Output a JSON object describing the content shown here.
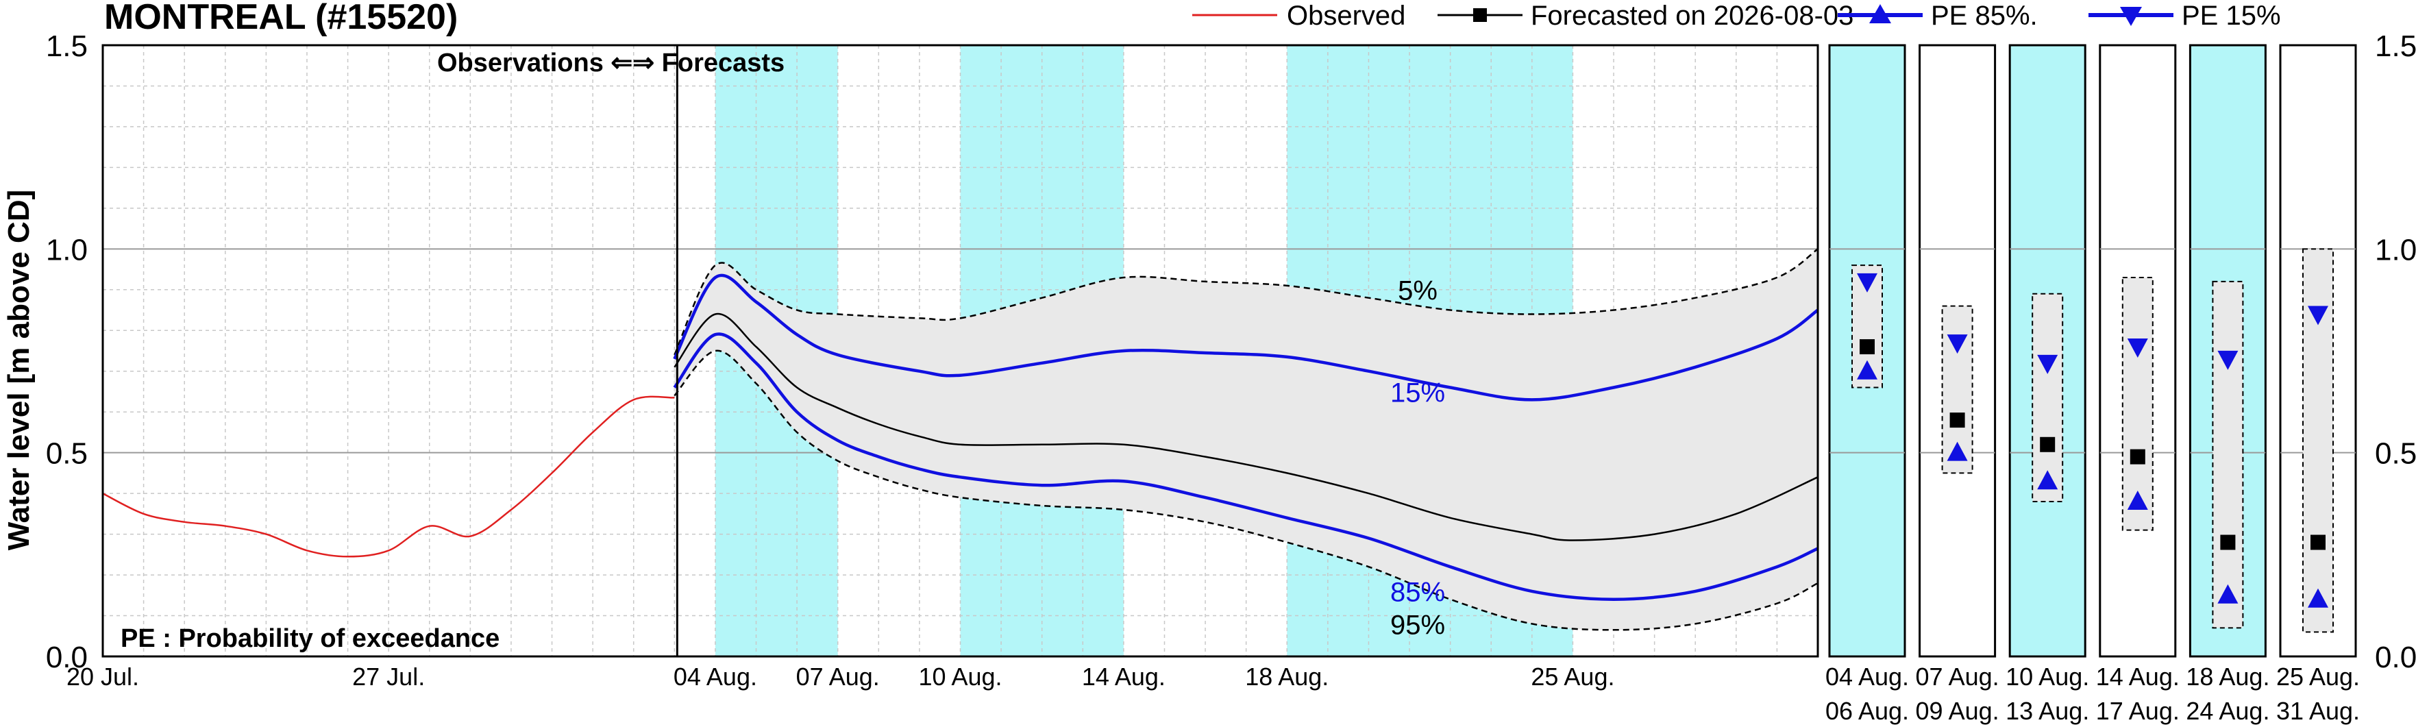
{
  "chart_data": {
    "type": "line",
    "title": "MONTREAL (#15520)",
    "ylabel": "Water level [m above CD]",
    "ylim": [
      0.0,
      1.5
    ],
    "yticks": [
      "0.0",
      "0.5",
      "1.0",
      "1.5"
    ],
    "grid": true,
    "legend_position": "top-right",
    "legend": {
      "observed": "Observed",
      "forecast": "Forecasted on 2026-08-03",
      "pe85": "PE 85%.",
      "pe15": "PE 15%"
    },
    "annotations": {
      "obs_forecast": "Observations  ⇐⇒  Forecasts",
      "pe_note": "PE : Probability of exceedance",
      "p5": "5%",
      "p15": "15%",
      "p85": "85%",
      "p95": "95%"
    },
    "x_start": "2026-07-20",
    "x_end": "2026-08-31",
    "forecast_start": "2026-08-03",
    "x_tick_labels": [
      {
        "date": "2026-07-20",
        "label": "20 Jul."
      },
      {
        "date": "2026-07-27",
        "label": "27 Jul."
      },
      {
        "date": "2026-08-04",
        "label": "04 Aug."
      },
      {
        "date": "2026-08-07",
        "label": "07 Aug."
      },
      {
        "date": "2026-08-10",
        "label": "10 Aug."
      },
      {
        "date": "2026-08-14",
        "label": "14 Aug."
      },
      {
        "date": "2026-08-18",
        "label": "18 Aug."
      },
      {
        "date": "2026-08-25",
        "label": "25 Aug."
      }
    ],
    "shaded_periods": [
      [
        "2026-08-04",
        "2026-08-07"
      ],
      [
        "2026-08-10",
        "2026-08-14"
      ],
      [
        "2026-08-18",
        "2026-08-25"
      ]
    ],
    "colors": {
      "observed": "#e02020",
      "forecast": "#000000",
      "pe": "#1010e0",
      "band": "#e9e9e9",
      "cyan": "#b4f6f8"
    },
    "series": [
      {
        "name": "Observed",
        "points": [
          [
            "2026-07-20",
            0.4
          ],
          [
            "2026-07-21",
            0.35
          ],
          [
            "2026-07-22",
            0.33
          ],
          [
            "2026-07-23",
            0.32
          ],
          [
            "2026-07-24",
            0.3
          ],
          [
            "2026-07-25",
            0.26
          ],
          [
            "2026-07-26",
            0.245
          ],
          [
            "2026-07-27",
            0.26
          ],
          [
            "2026-07-28",
            0.32
          ],
          [
            "2026-07-29",
            0.295
          ],
          [
            "2026-07-30",
            0.36
          ],
          [
            "2026-07-31",
            0.45
          ],
          [
            "2026-08-01",
            0.55
          ],
          [
            "2026-08-02",
            0.63
          ],
          [
            "2026-08-03",
            0.635
          ]
        ]
      },
      {
        "name": "Forecasted on 2026-08-03",
        "points": [
          [
            "2026-08-03",
            0.71
          ],
          [
            "2026-08-04",
            0.84
          ],
          [
            "2026-08-05",
            0.76
          ],
          [
            "2026-08-06",
            0.66
          ],
          [
            "2026-08-07",
            0.61
          ],
          [
            "2026-08-08",
            0.57
          ],
          [
            "2026-08-09",
            0.54
          ],
          [
            "2026-08-10",
            0.52
          ],
          [
            "2026-08-12",
            0.52
          ],
          [
            "2026-08-14",
            0.52
          ],
          [
            "2026-08-16",
            0.49
          ],
          [
            "2026-08-18",
            0.45
          ],
          [
            "2026-08-20",
            0.4
          ],
          [
            "2026-08-22",
            0.34
          ],
          [
            "2026-08-24",
            0.3
          ],
          [
            "2026-08-25",
            0.285
          ],
          [
            "2026-08-27",
            0.3
          ],
          [
            "2026-08-29",
            0.35
          ],
          [
            "2026-08-31",
            0.44
          ]
        ]
      },
      {
        "name": "PE 85%.",
        "points": [
          [
            "2026-08-03",
            0.66
          ],
          [
            "2026-08-04",
            0.79
          ],
          [
            "2026-08-05",
            0.72
          ],
          [
            "2026-08-06",
            0.6
          ],
          [
            "2026-08-07",
            0.53
          ],
          [
            "2026-08-08",
            0.49
          ],
          [
            "2026-08-09",
            0.46
          ],
          [
            "2026-08-10",
            0.44
          ],
          [
            "2026-08-12",
            0.42
          ],
          [
            "2026-08-14",
            0.43
          ],
          [
            "2026-08-16",
            0.39
          ],
          [
            "2026-08-18",
            0.34
          ],
          [
            "2026-08-20",
            0.29
          ],
          [
            "2026-08-22",
            0.22
          ],
          [
            "2026-08-24",
            0.16
          ],
          [
            "2026-08-26",
            0.14
          ],
          [
            "2026-08-28",
            0.16
          ],
          [
            "2026-08-30",
            0.22
          ],
          [
            "2026-08-31",
            0.265
          ]
        ]
      },
      {
        "name": "PE 15%",
        "points": [
          [
            "2026-08-03",
            0.73
          ],
          [
            "2026-08-04",
            0.93
          ],
          [
            "2026-08-05",
            0.87
          ],
          [
            "2026-08-06",
            0.79
          ],
          [
            "2026-08-07",
            0.74
          ],
          [
            "2026-08-09",
            0.7
          ],
          [
            "2026-08-10",
            0.69
          ],
          [
            "2026-08-12",
            0.72
          ],
          [
            "2026-08-14",
            0.75
          ],
          [
            "2026-08-16",
            0.745
          ],
          [
            "2026-08-18",
            0.735
          ],
          [
            "2026-08-20",
            0.7
          ],
          [
            "2026-08-22",
            0.66
          ],
          [
            "2026-08-24",
            0.63
          ],
          [
            "2026-08-26",
            0.66
          ],
          [
            "2026-08-28",
            0.71
          ],
          [
            "2026-08-30",
            0.78
          ],
          [
            "2026-08-31",
            0.85
          ]
        ]
      },
      {
        "name": "5%",
        "points": [
          [
            "2026-08-03",
            0.74
          ],
          [
            "2026-08-04",
            0.96
          ],
          [
            "2026-08-05",
            0.9
          ],
          [
            "2026-08-06",
            0.85
          ],
          [
            "2026-08-07",
            0.84
          ],
          [
            "2026-08-09",
            0.83
          ],
          [
            "2026-08-10",
            0.83
          ],
          [
            "2026-08-12",
            0.88
          ],
          [
            "2026-08-14",
            0.93
          ],
          [
            "2026-08-16",
            0.92
          ],
          [
            "2026-08-18",
            0.91
          ],
          [
            "2026-08-20",
            0.88
          ],
          [
            "2026-08-22",
            0.85
          ],
          [
            "2026-08-24",
            0.84
          ],
          [
            "2026-08-26",
            0.85
          ],
          [
            "2026-08-28",
            0.88
          ],
          [
            "2026-08-30",
            0.93
          ],
          [
            "2026-08-31",
            1.0
          ]
        ]
      },
      {
        "name": "95%",
        "points": [
          [
            "2026-08-03",
            0.64
          ],
          [
            "2026-08-04",
            0.75
          ],
          [
            "2026-08-05",
            0.67
          ],
          [
            "2026-08-06",
            0.55
          ],
          [
            "2026-08-07",
            0.48
          ],
          [
            "2026-08-08",
            0.44
          ],
          [
            "2026-08-09",
            0.41
          ],
          [
            "2026-08-10",
            0.39
          ],
          [
            "2026-08-12",
            0.37
          ],
          [
            "2026-08-14",
            0.36
          ],
          [
            "2026-08-16",
            0.33
          ],
          [
            "2026-08-18",
            0.28
          ],
          [
            "2026-08-20",
            0.22
          ],
          [
            "2026-08-22",
            0.14
          ],
          [
            "2026-08-24",
            0.08
          ],
          [
            "2026-08-26",
            0.065
          ],
          [
            "2026-08-28",
            0.08
          ],
          [
            "2026-08-30",
            0.13
          ],
          [
            "2026-08-31",
            0.18
          ]
        ]
      }
    ],
    "weekly_panels": [
      {
        "label_top": "04  Aug.",
        "label_bottom": "06  Aug.",
        "shaded": true,
        "band": [
          0.66,
          0.96
        ],
        "forecast": 0.76,
        "pe85": 0.7,
        "pe15": 0.92
      },
      {
        "label_top": "07  Aug.",
        "label_bottom": "09  Aug.",
        "shaded": false,
        "band": [
          0.45,
          0.86
        ],
        "forecast": 0.58,
        "pe85": 0.5,
        "pe15": 0.77
      },
      {
        "label_top": "10  Aug.",
        "label_bottom": "13  Aug.",
        "shaded": true,
        "band": [
          0.38,
          0.89
        ],
        "forecast": 0.52,
        "pe85": 0.43,
        "pe15": 0.72
      },
      {
        "label_top": "14  Aug.",
        "label_bottom": "17  Aug.",
        "shaded": false,
        "band": [
          0.31,
          0.93
        ],
        "forecast": 0.49,
        "pe85": 0.38,
        "pe15": 0.76
      },
      {
        "label_top": "18  Aug.",
        "label_bottom": "24  Aug.",
        "shaded": true,
        "band": [
          0.07,
          0.92
        ],
        "forecast": 0.28,
        "pe85": 0.15,
        "pe15": 0.73
      },
      {
        "label_top": "25  Aug.",
        "label_bottom": "31  Aug.",
        "shaded": false,
        "band": [
          0.06,
          1.0
        ],
        "forecast": 0.28,
        "pe85": 0.14,
        "pe15": 0.84
      }
    ]
  }
}
